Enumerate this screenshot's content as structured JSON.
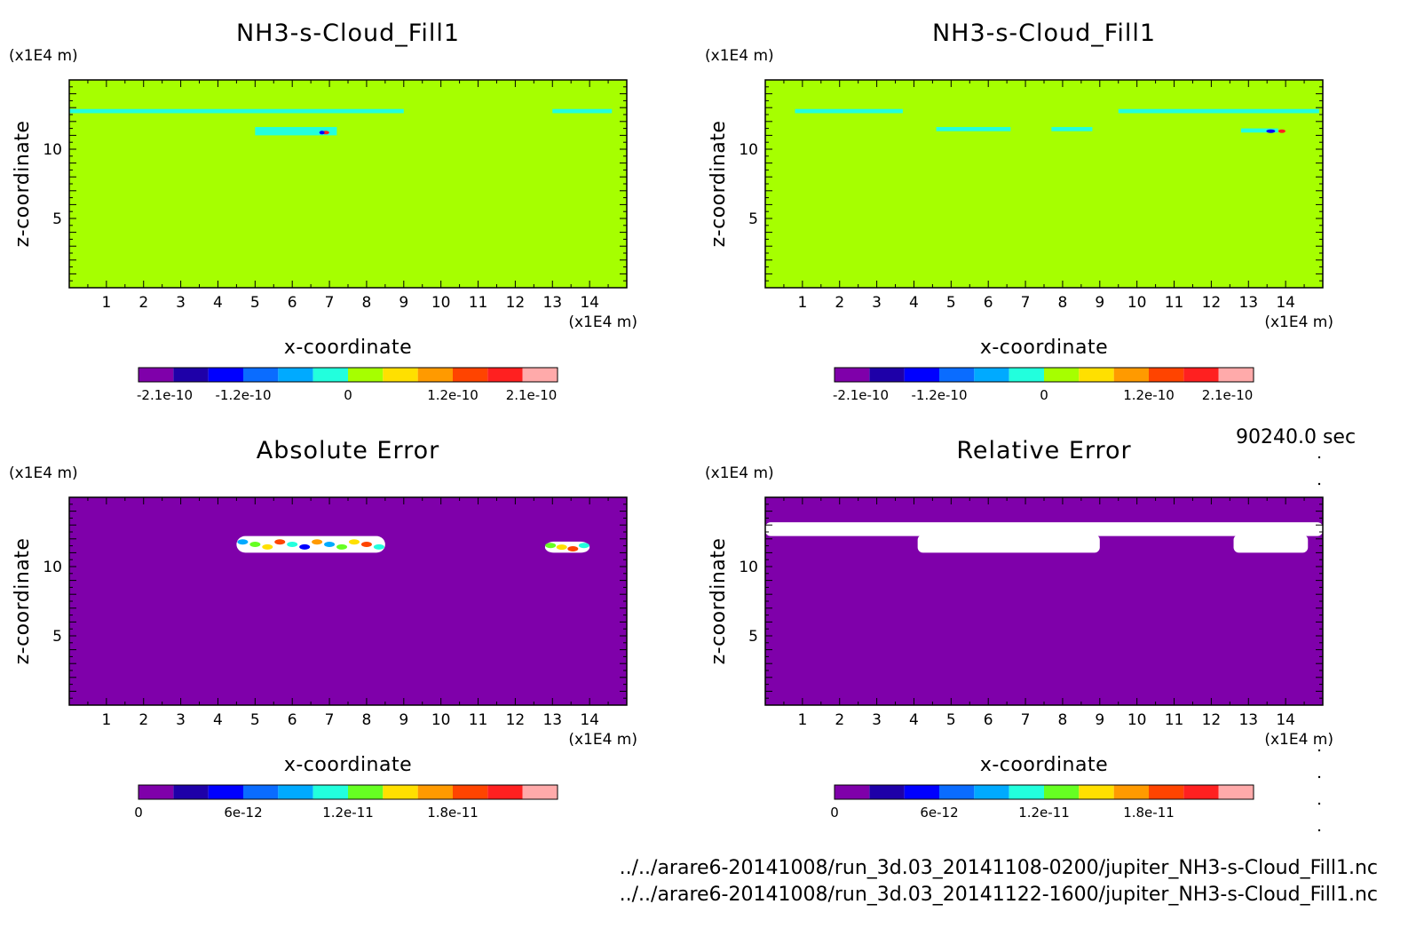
{
  "footer": {
    "time_label": "90240.0 sec",
    "file1": "../../arare6-20141008/run_3d.03_20141108-0200/jupiter_NH3-s-Cloud_Fill1.nc",
    "file2": "../../arare6-20141008/run_3d.03_20141122-1600/jupiter_NH3-s-Cloud_Fill1.nc"
  },
  "colors": {
    "fill_zero_field": "#a6ff00",
    "fill_zero_error": "#7f00aa",
    "cyan": "#22ffdd",
    "white": "#ffffff",
    "palette": [
      "#7f00aa",
      "#1e00a8",
      "#0000ff",
      "#0a6cff",
      "#00aaff",
      "#22ffdd",
      "#66ff22",
      "#ffe000",
      "#ff9a00",
      "#ff4400",
      "#ff2020",
      "#ffaaaa"
    ],
    "palette_field": [
      "#7f00aa",
      "#1e00a8",
      "#0000ff",
      "#0a6cff",
      "#00aaff",
      "#22ffdd",
      "#a6ff00",
      "#ffe000",
      "#ff9a00",
      "#ff4400",
      "#ff2020",
      "#ffaaaa"
    ]
  },
  "chart_data": [
    {
      "type": "heatmap",
      "title": "NH3-s-Cloud_Fill1",
      "xlabel": "x-coordinate",
      "ylabel": "z-coordinate",
      "x_unit": "(x1E4 m)",
      "y_unit": "(x1E4 m)",
      "xlim": [
        0,
        15
      ],
      "ylim": [
        0,
        15
      ],
      "xticks": [
        "1",
        "2",
        "3",
        "4",
        "5",
        "6",
        "7",
        "8",
        "9",
        "10",
        "11",
        "12",
        "13",
        "14"
      ],
      "yticks": [
        "5",
        "10"
      ],
      "colorbar_ticks": [
        "-2.1e-10",
        "-1.2e-10",
        "0",
        "1.2e-10",
        "2.1e-10"
      ],
      "colorbar_range": [
        -2.4e-10,
        2.4e-10
      ],
      "background_value": 0,
      "features": [
        {
          "kind": "band",
          "x": [
            0,
            9.0
          ],
          "z": [
            12.6,
            12.9
          ],
          "value": "cyan"
        },
        {
          "kind": "band",
          "x": [
            5.0,
            7.2
          ],
          "z": [
            11.0,
            11.6
          ],
          "value": "cyan"
        },
        {
          "kind": "band",
          "x": [
            13.0,
            14.6
          ],
          "z": [
            12.6,
            12.9
          ],
          "value": "cyan"
        }
      ]
    },
    {
      "type": "heatmap",
      "title": "NH3-s-Cloud_Fill1",
      "xlabel": "x-coordinate",
      "ylabel": "z-coordinate",
      "x_unit": "(x1E4 m)",
      "y_unit": "(x1E4 m)",
      "xlim": [
        0,
        15
      ],
      "ylim": [
        0,
        15
      ],
      "xticks": [
        "1",
        "2",
        "3",
        "4",
        "5",
        "6",
        "7",
        "8",
        "9",
        "10",
        "11",
        "12",
        "13",
        "14"
      ],
      "yticks": [
        "5",
        "10"
      ],
      "colorbar_ticks": [
        "-2.1e-10",
        "-1.2e-10",
        "0",
        "1.2e-10",
        "2.1e-10"
      ],
      "colorbar_range": [
        -2.4e-10,
        2.4e-10
      ],
      "background_value": 0,
      "features": [
        {
          "kind": "band",
          "x": [
            0.8,
            3.7
          ],
          "z": [
            12.6,
            12.9
          ],
          "value": "cyan"
        },
        {
          "kind": "band",
          "x": [
            4.6,
            6.6
          ],
          "z": [
            11.3,
            11.6
          ],
          "value": "cyan"
        },
        {
          "kind": "band",
          "x": [
            7.7,
            8.8
          ],
          "z": [
            11.3,
            11.6
          ],
          "value": "cyan"
        },
        {
          "kind": "band",
          "x": [
            9.5,
            14.9
          ],
          "z": [
            12.6,
            12.9
          ],
          "value": "cyan"
        },
        {
          "kind": "band",
          "x": [
            12.8,
            13.8
          ],
          "z": [
            11.2,
            11.5
          ],
          "value": "cyan"
        }
      ]
    },
    {
      "type": "heatmap",
      "title": "Absolute Error",
      "xlabel": "x-coordinate",
      "ylabel": "z-coordinate",
      "x_unit": "(x1E4 m)",
      "y_unit": "(x1E4 m)",
      "xlim": [
        0,
        15
      ],
      "ylim": [
        0,
        15
      ],
      "xticks": [
        "1",
        "2",
        "3",
        "4",
        "5",
        "6",
        "7",
        "8",
        "9",
        "10",
        "11",
        "12",
        "13",
        "14"
      ],
      "yticks": [
        "5",
        "10"
      ],
      "colorbar_ticks": [
        "0",
        "6e-12",
        "1.2e-11",
        "1.8e-11"
      ],
      "colorbar_range": [
        0,
        2.4e-11
      ],
      "background_value": 0,
      "features": [
        {
          "kind": "blob",
          "x": [
            4.5,
            8.5
          ],
          "z": [
            11.0,
            12.2
          ],
          "value": "mixed"
        },
        {
          "kind": "blob",
          "x": [
            12.8,
            14.0
          ],
          "z": [
            11.0,
            11.8
          ],
          "value": "mixed"
        }
      ]
    },
    {
      "type": "heatmap",
      "title": "Relative Error",
      "xlabel": "x-coordinate",
      "ylabel": "z-coordinate",
      "x_unit": "(x1E4 m)",
      "y_unit": "(x1E4 m)",
      "xlim": [
        0,
        15
      ],
      "ylim": [
        0,
        15
      ],
      "xticks": [
        "1",
        "2",
        "3",
        "4",
        "5",
        "6",
        "7",
        "8",
        "9",
        "10",
        "11",
        "12",
        "13",
        "14"
      ],
      "yticks": [
        "5",
        "10"
      ],
      "colorbar_ticks": [
        "0",
        "6e-12",
        "1.2e-11",
        "1.8e-11"
      ],
      "colorbar_range": [
        0,
        2.4e-11
      ],
      "background_value": 0,
      "features": [
        {
          "kind": "undefined",
          "x": [
            0,
            15
          ],
          "z": [
            12.2,
            13.2
          ],
          "value": "white"
        },
        {
          "kind": "undefined",
          "x": [
            4.1,
            9.0
          ],
          "z": [
            11.0,
            12.3
          ],
          "value": "white"
        },
        {
          "kind": "undefined",
          "x": [
            12.6,
            14.6
          ],
          "z": [
            11.0,
            12.3
          ],
          "value": "white"
        }
      ]
    }
  ]
}
